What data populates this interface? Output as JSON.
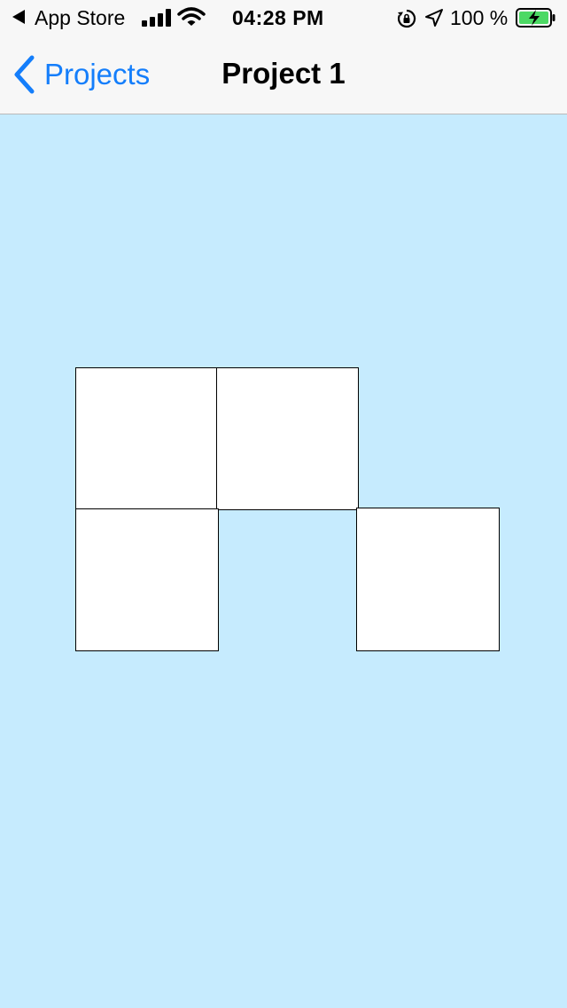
{
  "status_bar": {
    "back_app": "App Store",
    "time": "04:28 PM",
    "battery_percent": "100 %",
    "icons": [
      "back-triangle-icon",
      "cellular-signal-icon",
      "wifi-icon",
      "orientation-lock-icon",
      "location-arrow-icon",
      "battery-charging-icon"
    ],
    "battery_color": "#4cd964"
  },
  "nav": {
    "back_label": "Projects",
    "back_icon": "chevron-left-icon",
    "title": "Project 1"
  },
  "colors": {
    "accent": "#147efb",
    "canvas_background": "#c6ebfe",
    "tile_fill": "#ffffff",
    "tile_border": "#000000"
  },
  "tiles": [
    {
      "id": "tile-1",
      "row": 1,
      "col": 1
    },
    {
      "id": "tile-2",
      "row": 1,
      "col": 2
    },
    {
      "id": "tile-3",
      "row": 2,
      "col": 1
    },
    {
      "id": "tile-4",
      "row": 2,
      "col": 3
    }
  ]
}
